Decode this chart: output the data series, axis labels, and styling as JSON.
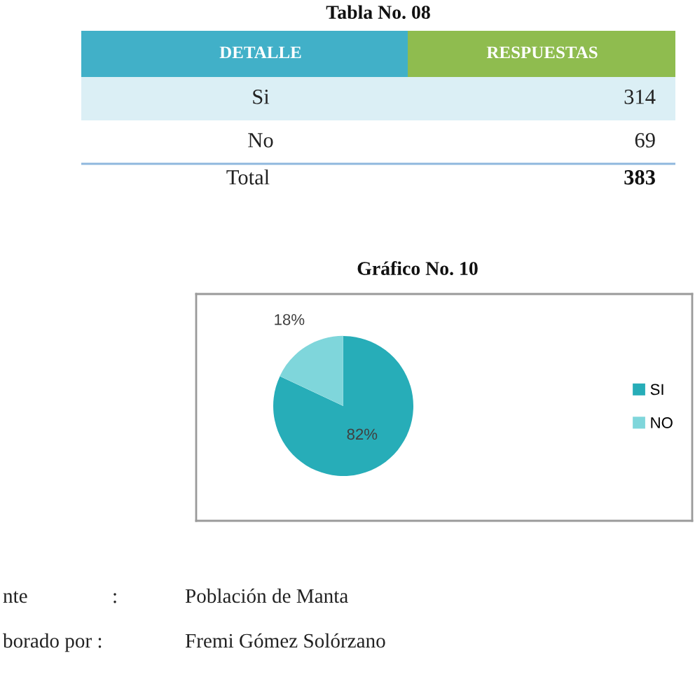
{
  "chart_data": [
    {
      "type": "other",
      "title": "Tabla No. 08",
      "xlabel": "DETALLE",
      "ylabel": "RESPUESTAS",
      "categories": [
        "Si",
        "No"
      ],
      "values": [
        314,
        69
      ],
      "data_labels": true,
      "annotations": [
        "Total"
      ],
      "totals": [
        "383"
      ]
    },
    {
      "type": "pie",
      "title": "Gráfico No. 10",
      "categories": [
        "SI",
        "NO"
      ],
      "values": [
        82,
        18
      ],
      "colors": [
        "#27adb8",
        "#7fd6db"
      ],
      "value_labels": [
        "82%",
        "18%"
      ],
      "legend": "right",
      "annotations": [
        "nte",
        ":",
        "Población de Manta",
        "borado por :",
        "Fremi Gómez Solórzano"
      ]
    }
  ]
}
